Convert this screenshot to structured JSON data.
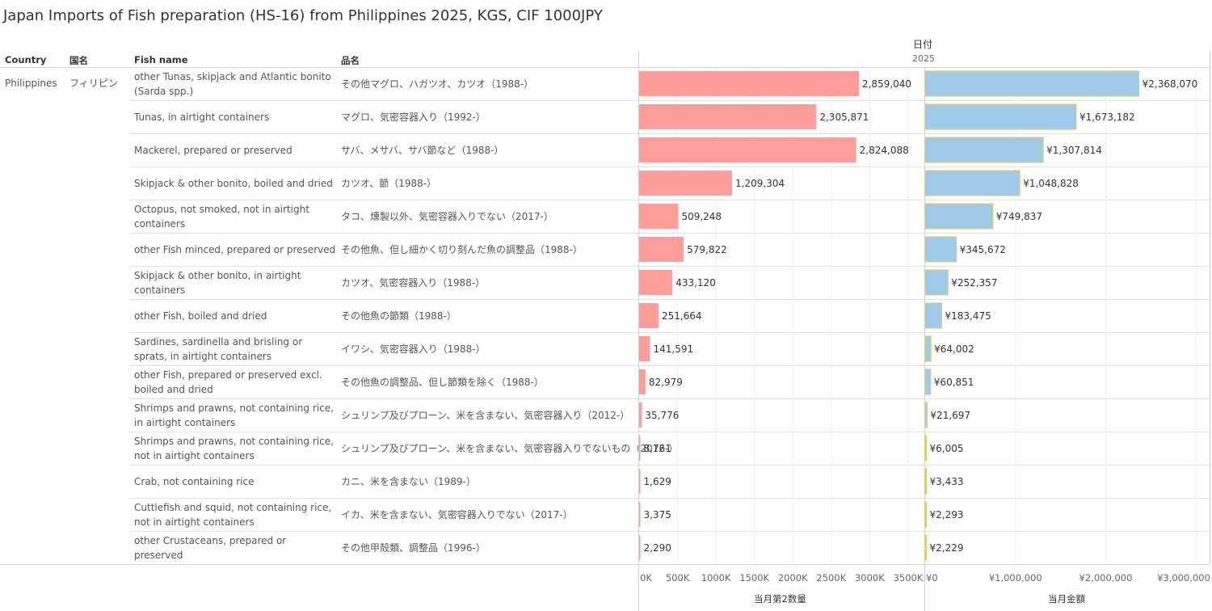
{
  "header": {
    "title": "Japan Imports of Fish preparation (HS-16) from Philippines 2025, KGS, CIF 1000JPY",
    "date_label": "日付",
    "year_label": "2025",
    "col_country": "Country",
    "col_kuni": "国名",
    "col_fish": "Fish name",
    "col_hinmei": "品名"
  },
  "country": "Philippines",
  "kuni": "フィリピン",
  "chart_data": {
    "type": "bar",
    "orientation": "horizontal",
    "categories": [
      "other Tunas, skipjack and Atlantic bonito (Sarda spp.)",
      "Tunas, in airtight containers",
      "Mackerel, prepared or preserved",
      "Skipjack & other bonito, boiled and dried",
      "Octopus, not smoked, not in airtight containers",
      "other Fish minced, prepared or preserved",
      "Skipjack & other bonito, in airtight containers",
      "other Fish, boiled and dried",
      "Sardines, sardinella and brisling or sprats, in airtight containers",
      "other Fish, prepared or preserved excl. boiled and dried",
      "Shrimps and prawns, not containing rice, in airtight containers",
      "Shrimps and prawns, not containing rice, not in airtight containers",
      "Crab, not containing rice",
      "Cuttlefish and squid, not containing rice, not in airtight containers",
      "other Crustaceans, prepared or preserved"
    ],
    "categories_ja": [
      "その他マグロ、ハガツオ、カツオ（1988-）",
      "マグロ、気密容器入り（1992-）",
      "サバ、メサバ、サバ節など（1988-）",
      "カツオ、節（1988-）",
      "タコ、燻製以外、気密容器入りでない（2017-）",
      "その他魚、但し細かく切り刻んだ魚の調整品（1988-）",
      "カツオ、気密容器入り（1988-）",
      "その他魚の節類（1988-）",
      "イワシ、気密容器入り（1988-）",
      "その他魚の調整品、但し節類を除く（1988-）",
      "シュリンプ及びプローン、米を含まない、気密容器入り（2012-）",
      "シュリンプ及びプローン、米を含まない、気密容器入りでないもの（2012-）",
      "カニ、米を含まない（1989-）",
      "イカ、米を含まない、気密容器入りでない（2017-）",
      "その他甲殻類、調整品（1996-）"
    ],
    "series": [
      {
        "name": "当月第2数量",
        "color": "#ff9d9a",
        "values": [
          2859040,
          2305871,
          2824088,
          1209304,
          509248,
          579822,
          433120,
          251664,
          141591,
          82979,
          35776,
          8761,
          1629,
          3375,
          2290
        ],
        "labels": [
          "2,859,040",
          "2,305,871",
          "2,824,088",
          "1,209,304",
          "509,248",
          "579,822",
          "433,120",
          "251,664",
          "141,591",
          "82,979",
          "35,776",
          "8,761",
          "1,629",
          "3,375",
          "2,290"
        ],
        "xlim": [
          0,
          3700000
        ],
        "ticks": [
          0,
          500000,
          1000000,
          1500000,
          2000000,
          2500000,
          3000000,
          3500000
        ],
        "tick_labels": [
          "0K",
          "500K",
          "1000K",
          "1500K",
          "2000K",
          "2500K",
          "3000K",
          "3500K"
        ],
        "axis_label": "当月第2数量"
      },
      {
        "name": "当月金額",
        "color": "#a0cbe8",
        "border": "#e3cd6b",
        "values": [
          2368070,
          1673182,
          1307814,
          1048828,
          749837,
          345672,
          252357,
          183475,
          64002,
          60851,
          21697,
          6005,
          3433,
          2293,
          2229
        ],
        "labels": [
          "¥2,368,070",
          "¥1,673,182",
          "¥1,307,814",
          "¥1,048,828",
          "¥749,837",
          "¥345,672",
          "¥252,357",
          "¥183,475",
          "¥64,002",
          "¥60,851",
          "¥21,697",
          "¥6,005",
          "¥3,433",
          "¥2,293",
          "¥2,229"
        ],
        "xlim": [
          0,
          3150000
        ],
        "ticks": [
          0,
          1000000,
          2000000,
          3000000
        ],
        "tick_labels": [
          "¥0",
          "¥1,000,000",
          "¥2,000,000",
          "¥3,000,000"
        ],
        "axis_label": "当月金額"
      }
    ]
  }
}
